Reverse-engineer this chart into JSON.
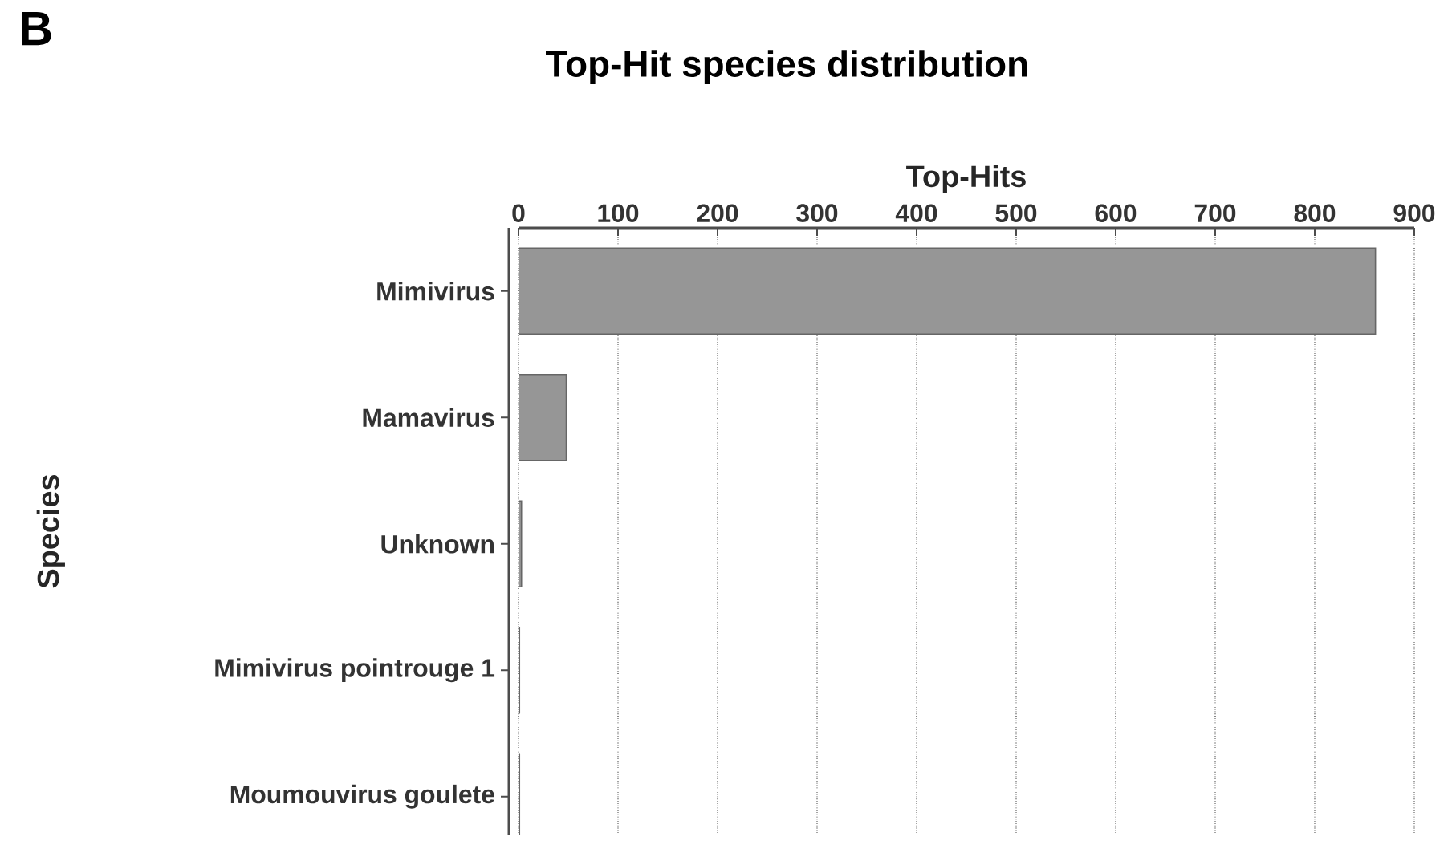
{
  "chart_data": {
    "type": "bar",
    "orientation": "horizontal",
    "title": "Top-Hit species distribution",
    "xlabel": "Top-Hits",
    "ylabel": "Species",
    "categories": [
      "Mimivirus",
      "Mamavirus",
      "Unknown",
      "Mimivirus pointrouge 1",
      "Moumouvirus goulete"
    ],
    "values": [
      861,
      48,
      3,
      1,
      1
    ],
    "color": "#969696",
    "xlim": [
      0,
      900
    ],
    "xticks": [
      0,
      100,
      200,
      300,
      400,
      500,
      600,
      700,
      800,
      900
    ],
    "grid": "x",
    "annotations": [
      "B"
    ]
  }
}
